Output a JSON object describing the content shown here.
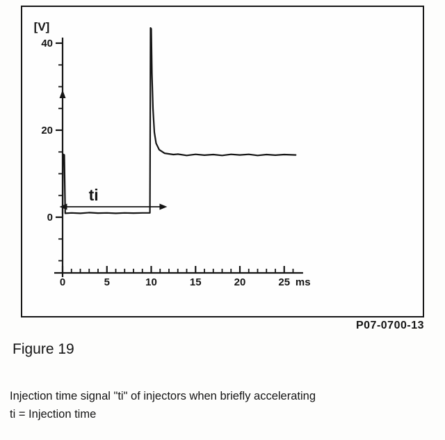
{
  "figure": {
    "part_number": "P07-0700-13",
    "title": "Figure 19",
    "caption_line1": "Injection time signal \"ti\" of injectors when briefly accelerating",
    "caption_line2": "ti  =  Injection time"
  },
  "chart_data": {
    "type": "line",
    "title": "",
    "ylabel": "[V]",
    "x_unit": "ms",
    "x_ticks": [
      0,
      5,
      10,
      15,
      20,
      25
    ],
    "x_minor_step": 1,
    "x_max": 26.5,
    "y_ticks": [
      0,
      20,
      40
    ],
    "y_minor_step": 5,
    "ylim": [
      -12,
      44
    ],
    "grid": false,
    "ink_color": "#141414",
    "axis_arrow_v": 28,
    "annotation": {
      "label": "ti",
      "from": 0.35,
      "to": 10,
      "overshoot_to": 11.8,
      "y": 2.4
    },
    "series": [
      {
        "name": "injection-time-signal",
        "points": [
          [
            0,
            0.8
          ],
          [
            0.05,
            14.5
          ],
          [
            0.2,
            14.3
          ],
          [
            0.3,
            0.9
          ],
          [
            1,
            1.0
          ],
          [
            2,
            0.9
          ],
          [
            3,
            1.05
          ],
          [
            4,
            0.95
          ],
          [
            5,
            1.0
          ],
          [
            6,
            0.9
          ],
          [
            7,
            1.0
          ],
          [
            8,
            0.95
          ],
          [
            9,
            1.0
          ],
          [
            9.85,
            1.0
          ],
          [
            9.92,
            43.5
          ],
          [
            10.0,
            43.3
          ],
          [
            10.08,
            33
          ],
          [
            10.2,
            25
          ],
          [
            10.35,
            19.5
          ],
          [
            10.55,
            17
          ],
          [
            10.9,
            15.5
          ],
          [
            11.5,
            14.7
          ],
          [
            12.5,
            14.4
          ],
          [
            13,
            14.5
          ],
          [
            14,
            14.2
          ],
          [
            15,
            14.45
          ],
          [
            16,
            14.25
          ],
          [
            17,
            14.4
          ],
          [
            18,
            14.2
          ],
          [
            19,
            14.45
          ],
          [
            20,
            14.3
          ],
          [
            21,
            14.45
          ],
          [
            22,
            14.2
          ],
          [
            23,
            14.4
          ],
          [
            24,
            14.25
          ],
          [
            25,
            14.4
          ],
          [
            26.3,
            14.3
          ]
        ]
      }
    ]
  }
}
